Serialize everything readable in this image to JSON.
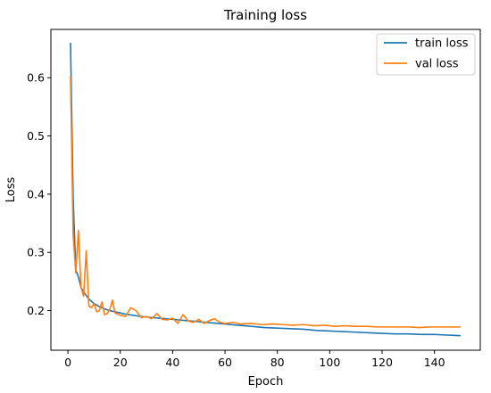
{
  "chart_data": {
    "type": "line",
    "title": "Training loss",
    "xlabel": "Epoch",
    "ylabel": "Loss",
    "xlim": [
      -6.5,
      157.5
    ],
    "ylim": [
      0.132,
      0.683
    ],
    "xticks": [
      0,
      20,
      40,
      60,
      80,
      100,
      120,
      140
    ],
    "yticks": [
      0.2,
      0.3,
      0.4,
      0.5,
      0.6
    ],
    "grid": false,
    "legend_position": "top-right",
    "series": [
      {
        "name": "train loss",
        "color": "#1f77b4",
        "points": [
          [
            1,
            0.66
          ],
          [
            2,
            0.395
          ],
          [
            3,
            0.27
          ],
          [
            4,
            0.258
          ],
          [
            5,
            0.24
          ],
          [
            6,
            0.232
          ],
          [
            7,
            0.226
          ],
          [
            8,
            0.22
          ],
          [
            9,
            0.216
          ],
          [
            10,
            0.212
          ],
          [
            12,
            0.207
          ],
          [
            14,
            0.203
          ],
          [
            16,
            0.2
          ],
          [
            18,
            0.198
          ],
          [
            20,
            0.196
          ],
          [
            22,
            0.194
          ],
          [
            25,
            0.192
          ],
          [
            28,
            0.19
          ],
          [
            30,
            0.189
          ],
          [
            35,
            0.187
          ],
          [
            40,
            0.185
          ],
          [
            45,
            0.183
          ],
          [
            50,
            0.181
          ],
          [
            55,
            0.179
          ],
          [
            60,
            0.177
          ],
          [
            65,
            0.175
          ],
          [
            70,
            0.173
          ],
          [
            75,
            0.171
          ],
          [
            80,
            0.17
          ],
          [
            85,
            0.169
          ],
          [
            90,
            0.168
          ],
          [
            95,
            0.166
          ],
          [
            100,
            0.165
          ],
          [
            105,
            0.164
          ],
          [
            110,
            0.163
          ],
          [
            115,
            0.162
          ],
          [
            120,
            0.161
          ],
          [
            125,
            0.16
          ],
          [
            130,
            0.16
          ],
          [
            135,
            0.159
          ],
          [
            140,
            0.159
          ],
          [
            145,
            0.158
          ],
          [
            150,
            0.157
          ]
        ]
      },
      {
        "name": "val loss",
        "color": "#ff7f0e",
        "points": [
          [
            1,
            0.603
          ],
          [
            2,
            0.33
          ],
          [
            3,
            0.265
          ],
          [
            4,
            0.338
          ],
          [
            5,
            0.24
          ],
          [
            6,
            0.225
          ],
          [
            7,
            0.303
          ],
          [
            8,
            0.208
          ],
          [
            9,
            0.205
          ],
          [
            10,
            0.212
          ],
          [
            11,
            0.198
          ],
          [
            12,
            0.2
          ],
          [
            13,
            0.215
          ],
          [
            14,
            0.193
          ],
          [
            15,
            0.195
          ],
          [
            16,
            0.202
          ],
          [
            17,
            0.218
          ],
          [
            18,
            0.196
          ],
          [
            20,
            0.192
          ],
          [
            22,
            0.19
          ],
          [
            24,
            0.205
          ],
          [
            26,
            0.2
          ],
          [
            28,
            0.188
          ],
          [
            30,
            0.19
          ],
          [
            32,
            0.186
          ],
          [
            34,
            0.195
          ],
          [
            36,
            0.185
          ],
          [
            38,
            0.184
          ],
          [
            40,
            0.187
          ],
          [
            42,
            0.178
          ],
          [
            44,
            0.193
          ],
          [
            46,
            0.182
          ],
          [
            48,
            0.18
          ],
          [
            50,
            0.185
          ],
          [
            52,
            0.178
          ],
          [
            54,
            0.183
          ],
          [
            56,
            0.186
          ],
          [
            58,
            0.18
          ],
          [
            60,
            0.178
          ],
          [
            63,
            0.18
          ],
          [
            66,
            0.177
          ],
          [
            70,
            0.178
          ],
          [
            74,
            0.176
          ],
          [
            78,
            0.177
          ],
          [
            82,
            0.176
          ],
          [
            86,
            0.175
          ],
          [
            90,
            0.176
          ],
          [
            94,
            0.174
          ],
          [
            98,
            0.175
          ],
          [
            102,
            0.173
          ],
          [
            106,
            0.174
          ],
          [
            110,
            0.173
          ],
          [
            114,
            0.173
          ],
          [
            118,
            0.172
          ],
          [
            122,
            0.172
          ],
          [
            126,
            0.172
          ],
          [
            130,
            0.172
          ],
          [
            134,
            0.171
          ],
          [
            138,
            0.172
          ],
          [
            142,
            0.172
          ],
          [
            146,
            0.172
          ],
          [
            150,
            0.172
          ]
        ]
      }
    ]
  }
}
